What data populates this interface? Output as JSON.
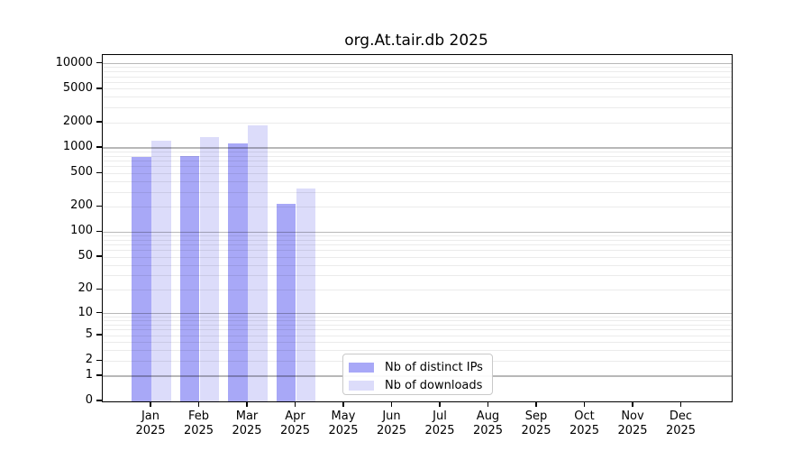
{
  "chart_data": {
    "type": "bar",
    "title": "org.At.tair.db 2025",
    "categories": [
      "Jan",
      "Feb",
      "Mar",
      "Apr",
      "May",
      "Jun",
      "Jul",
      "Aug",
      "Sep",
      "Oct",
      "Nov",
      "Dec"
    ],
    "year": "2025",
    "series": [
      {
        "name": "Nb of distinct IPs",
        "color": "#a8a8f7",
        "values": [
          790,
          810,
          1130,
          220,
          0,
          0,
          0,
          0,
          0,
          0,
          0,
          0
        ]
      },
      {
        "name": "Nb of downloads",
        "color": "#dcdcfa",
        "values": [
          1230,
          1360,
          1840,
          330,
          0,
          0,
          0,
          0,
          0,
          0,
          0,
          0
        ]
      }
    ],
    "yscale": "log1p",
    "yticks": [
      0,
      1,
      2,
      5,
      10,
      20,
      50,
      100,
      200,
      500,
      1000,
      2000,
      5000,
      10000
    ],
    "ylim": [
      0,
      12500
    ],
    "xlabel": "",
    "ylabel": "",
    "grid": "horizontal major+minor, drawn over bars",
    "legend_position": "inside-bottom-center",
    "colors": {
      "major_grid": "rgba(0,0,0,0.28)",
      "minor_grid": "rgba(0,0,0,0.08)",
      "spine": "#000000",
      "background": "#ffffff",
      "text": "#000000"
    }
  }
}
